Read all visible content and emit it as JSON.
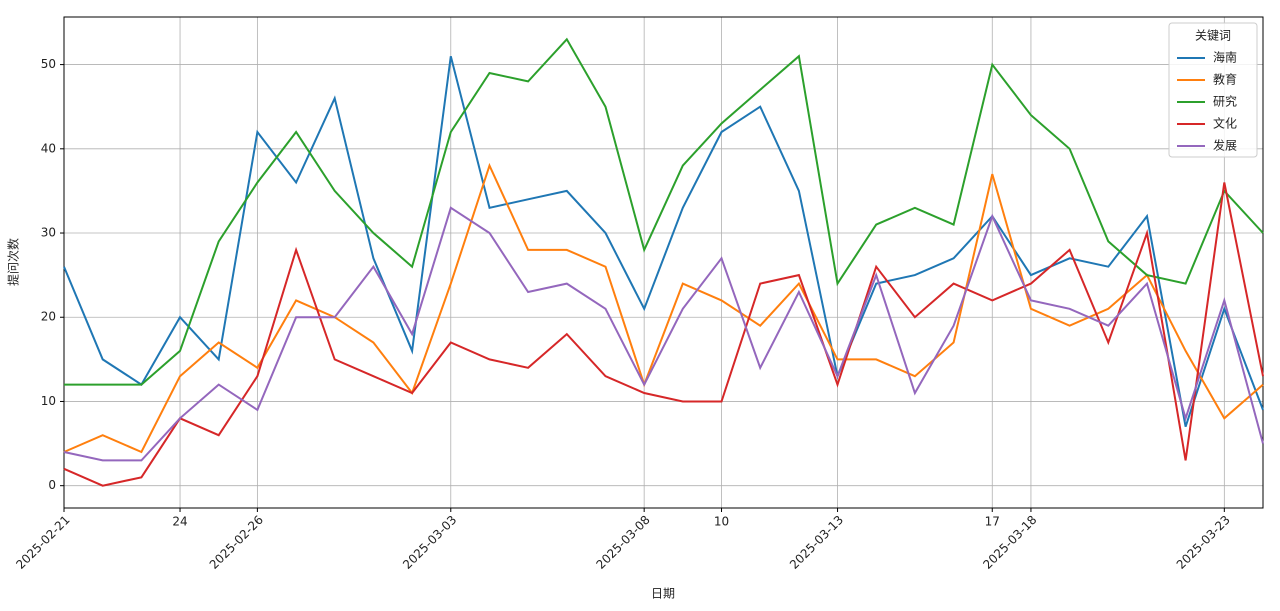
{
  "chart_data": {
    "type": "line",
    "x_label": "日期",
    "y_label": "提问次数",
    "x": [
      "2025-02-21",
      "2025-02-22",
      "2025-02-23",
      "2025-02-24",
      "2025-02-25",
      "2025-02-26",
      "2025-02-27",
      "2025-02-28",
      "2025-03-01",
      "2025-03-02",
      "2025-03-03",
      "2025-03-04",
      "2025-03-05",
      "2025-03-06",
      "2025-03-07",
      "2025-03-08",
      "2025-03-09",
      "2025-03-10",
      "2025-03-11",
      "2025-03-12",
      "2025-03-13",
      "2025-03-14",
      "2025-03-15",
      "2025-03-16",
      "2025-03-17",
      "2025-03-18",
      "2025-03-19",
      "2025-03-20",
      "2025-03-21",
      "2025-03-22",
      "2025-03-23",
      "2025-03-24"
    ],
    "xlim": [
      "2025-02-21",
      "2025-03-24"
    ],
    "xticks": [
      "2025-02-21",
      {
        "value": "2025-02-24",
        "label": "24"
      },
      "2025-02-26",
      "2025-03-03",
      "2025-03-08",
      {
        "value": "2025-03-10",
        "label": "10"
      },
      "2025-03-13",
      {
        "value": "2025-03-17",
        "label": "17"
      },
      "2025-03-18",
      "2025-03-23"
    ],
    "ylim": [
      -2.65,
      55.65
    ],
    "yticks": [
      0,
      10,
      20,
      30,
      40,
      50
    ],
    "grid": true,
    "legend_title": "关键词",
    "legend_position": "upper-right",
    "series": [
      {
        "name": "海南",
        "color": "#1f77b4",
        "values": [
          26,
          15,
          12,
          20,
          15,
          42,
          36,
          46,
          27,
          16,
          51,
          33,
          34,
          35,
          30,
          21,
          33,
          42,
          45,
          35,
          13,
          24,
          25,
          27,
          32,
          25,
          27,
          26,
          32,
          7,
          21,
          9
        ]
      },
      {
        "name": "教育",
        "color": "#ff7f0e",
        "values": [
          4,
          6,
          4,
          13,
          17,
          14,
          22,
          20,
          17,
          11,
          24,
          38,
          28,
          28,
          26,
          12,
          24,
          22,
          19,
          24,
          15,
          15,
          13,
          17,
          37,
          21,
          19,
          21,
          25,
          16,
          8,
          12
        ]
      },
      {
        "name": "研究",
        "color": "#2ca02c",
        "values": [
          12,
          12,
          12,
          16,
          29,
          36,
          42,
          35,
          30,
          26,
          42,
          49,
          48,
          53,
          45,
          28,
          38,
          43,
          47,
          51,
          24,
          31,
          33,
          31,
          50,
          44,
          40,
          29,
          25,
          24,
          35,
          30
        ]
      },
      {
        "name": "文化",
        "color": "#d62728",
        "values": [
          2,
          0,
          1,
          8,
          6,
          13,
          28,
          15,
          13,
          11,
          17,
          15,
          14,
          18,
          13,
          11,
          10,
          10,
          24,
          25,
          12,
          26,
          20,
          24,
          22,
          24,
          28,
          17,
          30,
          3,
          36,
          13
        ]
      },
      {
        "name": "发展",
        "color": "#9467bd",
        "values": [
          4,
          3,
          3,
          8,
          12,
          9,
          20,
          20,
          26,
          18,
          33,
          30,
          23,
          24,
          21,
          12,
          21,
          27,
          14,
          23,
          13,
          25,
          11,
          19,
          32,
          22,
          21,
          19,
          24,
          8,
          22,
          5
        ]
      }
    ]
  }
}
